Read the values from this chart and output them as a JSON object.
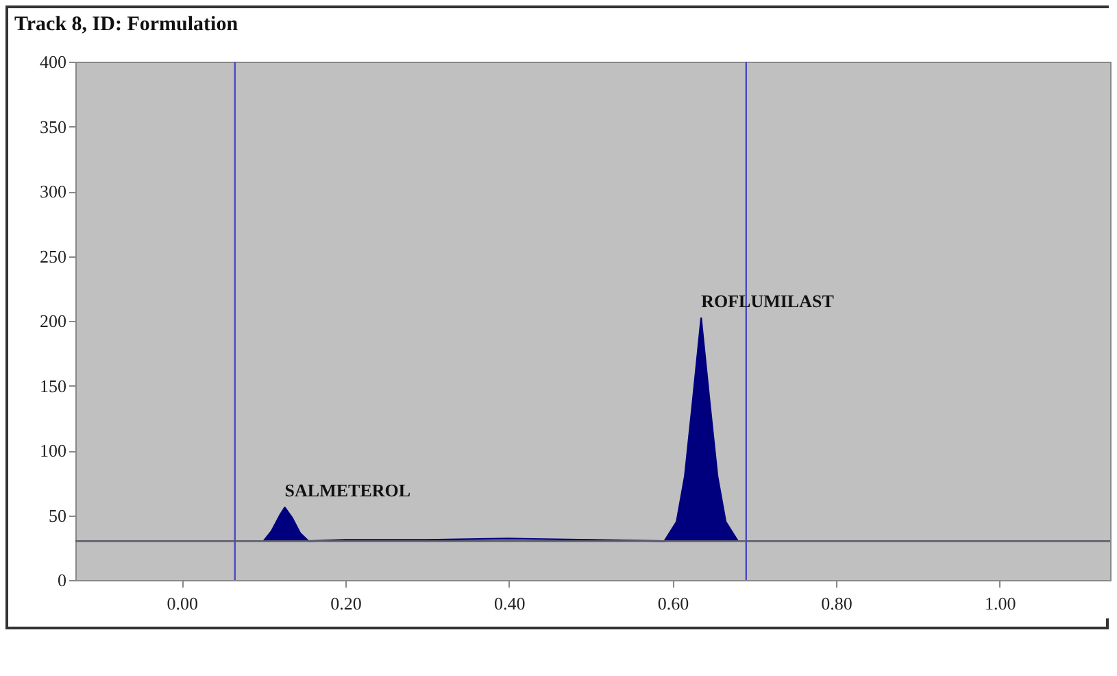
{
  "chart_data": {
    "type": "line",
    "title": "Track 8, ID: Formulation",
    "x": [
      0.1,
      0.11,
      0.12,
      0.126,
      0.135,
      0.145,
      0.155,
      0.2,
      0.3,
      0.4,
      0.5,
      0.59,
      0.605,
      0.615,
      0.625,
      0.635,
      0.645,
      0.655,
      0.665,
      0.68
    ],
    "series": [
      {
        "color": "#00007f",
        "values": [
          30,
          38,
          50,
          56,
          48,
          36,
          30,
          31,
          31,
          32,
          31,
          30,
          45,
          80,
          140,
          202,
          140,
          80,
          45,
          30
        ],
        "lower": [
          30,
          30,
          30,
          30,
          30,
          30,
          30,
          null,
          null,
          null,
          null,
          30,
          30,
          30,
          30,
          30,
          30,
          30,
          30,
          30
        ],
        "upper": [
          30,
          38,
          50,
          56,
          48,
          36,
          30,
          null,
          null,
          null,
          null,
          30,
          45,
          80,
          140,
          202,
          140,
          80,
          45,
          30
        ]
      }
    ],
    "xlim": [
      -0.13,
      1.135
    ],
    "ylim": [
      0,
      400
    ],
    "xticks": [
      {
        "value": 0,
        "label": "0.00"
      },
      {
        "value": 0.2,
        "label": "0.20"
      },
      {
        "value": 0.4,
        "label": "0.40"
      },
      {
        "value": 0.6,
        "label": "0.60"
      },
      {
        "value": 0.8,
        "label": "0.80"
      },
      {
        "value": 1,
        "label": "1.00"
      }
    ],
    "yticks": [
      0,
      50,
      100,
      150,
      200,
      250,
      300,
      350,
      400
    ],
    "ref_lines": [
      {
        "axis": "x",
        "value": 0.065,
        "color": "#4a4ac8"
      },
      {
        "axis": "x",
        "value": 0.69,
        "color": "#4a4ac8"
      },
      {
        "axis": "y",
        "value": 30,
        "color": "#5a5a6a"
      }
    ],
    "annotations": [
      {
        "text": "SALMETEROL",
        "x": 0.126,
        "y": 56
      },
      {
        "text": "ROFLUMILAST",
        "x": 0.635,
        "y": 202
      }
    ],
    "grid": false
  }
}
